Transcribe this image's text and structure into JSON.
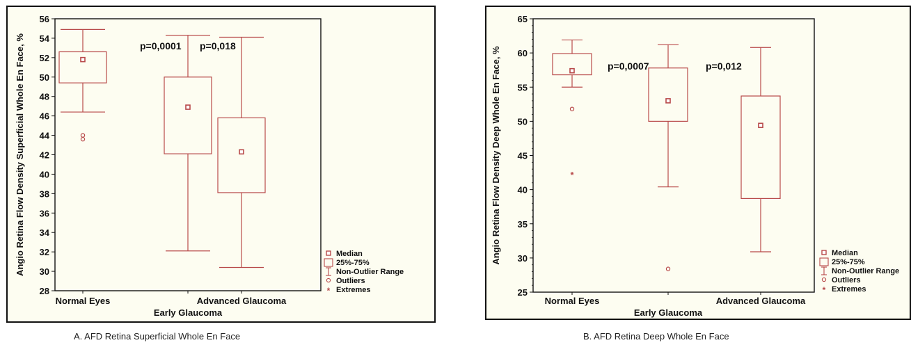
{
  "chart_data": [
    {
      "type": "box",
      "panel": "A",
      "caption": "A. AFD Retina Superficial Whole En Face",
      "ylabel": "Angio Retina Flow Density Superficial Whole En Face, %",
      "xlabel": "Early Glaucoma",
      "ylim": [
        28,
        56
      ],
      "yticks": [
        28,
        30,
        32,
        34,
        36,
        38,
        40,
        42,
        44,
        46,
        48,
        50,
        52,
        54,
        56
      ],
      "x_tick_labels": [
        "Normal Eyes",
        "Advanced Glaucoma"
      ],
      "annotations": [
        "p=0,0001",
        "p=0,018"
      ],
      "groups": [
        {
          "label": "Normal Eyes",
          "median": 51.8,
          "q1": 49.4,
          "q3": 52.6,
          "whisker_low": 46.4,
          "whisker_high": 54.9,
          "outliers": [
            44.0,
            43.6
          ],
          "extremes": []
        },
        {
          "label": "Early Glaucoma",
          "median": 46.9,
          "q1": 42.1,
          "q3": 50.0,
          "whisker_low": 32.1,
          "whisker_high": 54.3,
          "outliers": [],
          "extremes": []
        },
        {
          "label": "Advanced Glaucoma",
          "median": 42.3,
          "q1": 38.1,
          "q3": 45.8,
          "whisker_low": 30.4,
          "whisker_high": 54.1,
          "outliers": [],
          "extremes": []
        }
      ],
      "legend": {
        "position": "bottom-right",
        "items": [
          "Median",
          "25%-75%",
          "Non-Outlier Range",
          "Outliers",
          "Extremes"
        ]
      }
    },
    {
      "type": "box",
      "panel": "B",
      "caption": "B. AFD Retina Deep Whole En Face",
      "ylabel": "Angio Retina Flow Density Deep Whole En Face, %",
      "xlabel": "Early Glaucoma",
      "ylim": [
        25,
        65
      ],
      "yticks": [
        25,
        30,
        35,
        40,
        45,
        50,
        55,
        60,
        65
      ],
      "x_tick_labels": [
        "Normal Eyes",
        "Advanced Glaucoma"
      ],
      "annotations": [
        "p=0,0007",
        "p=0,012"
      ],
      "groups": [
        {
          "label": "Normal Eyes",
          "median": 57.4,
          "q1": 56.8,
          "q3": 59.9,
          "whisker_low": 55.0,
          "whisker_high": 61.9,
          "outliers": [
            51.8
          ],
          "extremes": [
            42.2
          ]
        },
        {
          "label": "Early Glaucoma",
          "median": 53.0,
          "q1": 50.0,
          "q3": 57.8,
          "whisker_low": 40.4,
          "whisker_high": 61.2,
          "outliers": [
            28.4
          ],
          "extremes": []
        },
        {
          "label": "Advanced Glaucoma",
          "median": 49.4,
          "q1": 38.7,
          "q3": 53.7,
          "whisker_low": 30.9,
          "whisker_high": 60.8,
          "outliers": [],
          "extremes": []
        }
      ],
      "legend": {
        "position": "bottom-right",
        "items": [
          "Median",
          "25%-75%",
          "Non-Outlier Range",
          "Outliers",
          "Extremes"
        ]
      }
    }
  ],
  "colors": {
    "box": "#b84a4a",
    "axis": "#111111",
    "background": "#fdfdf1",
    "text": "#111111"
  }
}
